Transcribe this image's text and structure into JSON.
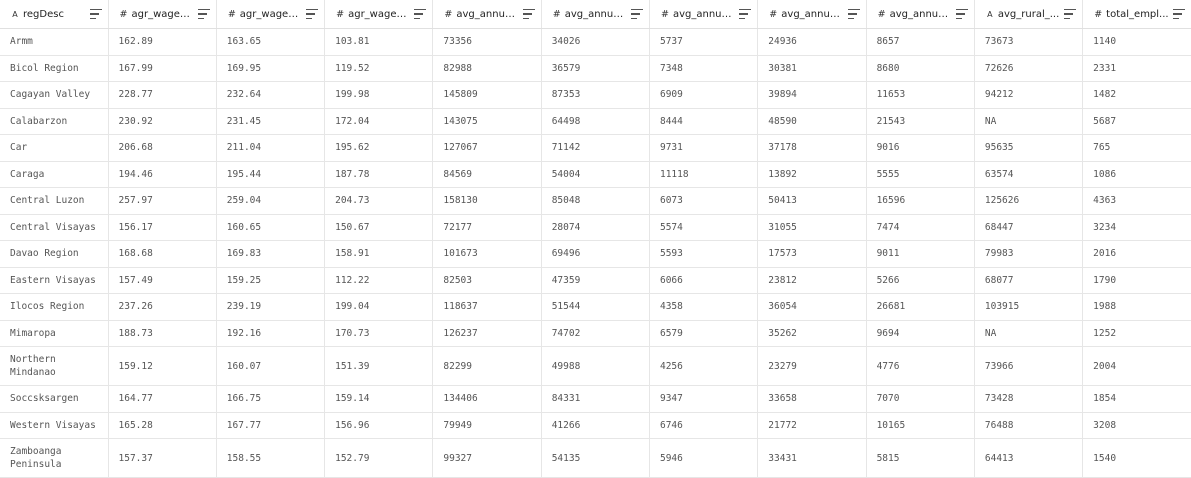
{
  "columns": [
    {
      "type_icon": "text-type-icon",
      "glyph": "A",
      "label": "regDesc"
    },
    {
      "type_icon": "number-type-icon",
      "glyph": "#",
      "label": "agr_wage_..."
    },
    {
      "type_icon": "number-type-icon",
      "glyph": "#",
      "label": "agr_wage_..."
    },
    {
      "type_icon": "number-type-icon",
      "glyph": "#",
      "label": "agr_wage_..."
    },
    {
      "type_icon": "number-type-icon",
      "glyph": "#",
      "label": "avg_annua..."
    },
    {
      "type_icon": "number-type-icon",
      "glyph": "#",
      "label": "avg_annua..."
    },
    {
      "type_icon": "number-type-icon",
      "glyph": "#",
      "label": "avg_annua..."
    },
    {
      "type_icon": "number-type-icon",
      "glyph": "#",
      "label": "avg_annua..."
    },
    {
      "type_icon": "number-type-icon",
      "glyph": "#",
      "label": "avg_annua..."
    },
    {
      "type_icon": "text-type-icon",
      "glyph": "A",
      "label": "avg_rural_..."
    },
    {
      "type_icon": "number-type-icon",
      "glyph": "#",
      "label": "total_empl..."
    }
  ],
  "rows": [
    [
      "Armm",
      "162.89",
      "163.65",
      "103.81",
      "73356",
      "34026",
      "5737",
      "24936",
      "8657",
      "73673",
      "1140"
    ],
    [
      "Bicol Region",
      "167.99",
      "169.95",
      "119.52",
      "82988",
      "36579",
      "7348",
      "30381",
      "8680",
      "72626",
      "2331"
    ],
    [
      "Cagayan Valley",
      "228.77",
      "232.64",
      "199.98",
      "145809",
      "87353",
      "6909",
      "39894",
      "11653",
      "94212",
      "1482"
    ],
    [
      "Calabarzon",
      "230.92",
      "231.45",
      "172.04",
      "143075",
      "64498",
      "8444",
      "48590",
      "21543",
      "NA",
      "5687"
    ],
    [
      "Car",
      "206.68",
      "211.04",
      "195.62",
      "127067",
      "71142",
      "9731",
      "37178",
      "9016",
      "95635",
      "765"
    ],
    [
      "Caraga",
      "194.46",
      "195.44",
      "187.78",
      "84569",
      "54004",
      "11118",
      "13892",
      "5555",
      "63574",
      "1086"
    ],
    [
      "Central Luzon",
      "257.97",
      "259.04",
      "204.73",
      "158130",
      "85048",
      "6073",
      "50413",
      "16596",
      "125626",
      "4363"
    ],
    [
      "Central Visayas",
      "156.17",
      "160.65",
      "150.67",
      "72177",
      "28074",
      "5574",
      "31055",
      "7474",
      "68447",
      "3234"
    ],
    [
      "Davao Region",
      "168.68",
      "169.83",
      "158.91",
      "101673",
      "69496",
      "5593",
      "17573",
      "9011",
      "79983",
      "2016"
    ],
    [
      "Eastern Visayas",
      "157.49",
      "159.25",
      "112.22",
      "82503",
      "47359",
      "6066",
      "23812",
      "5266",
      "68077",
      "1790"
    ],
    [
      "Ilocos Region",
      "237.26",
      "239.19",
      "199.04",
      "118637",
      "51544",
      "4358",
      "36054",
      "26681",
      "103915",
      "1988"
    ],
    [
      "Mimaropa",
      "188.73",
      "192.16",
      "170.73",
      "126237",
      "74702",
      "6579",
      "35262",
      "9694",
      "NA",
      "1252"
    ],
    [
      "Northern Mindanao",
      "159.12",
      "160.07",
      "151.39",
      "82299",
      "49988",
      "4256",
      "23279",
      "4776",
      "73966",
      "2004"
    ],
    [
      "Soccsksargen",
      "164.77",
      "166.75",
      "159.14",
      "134406",
      "84331",
      "9347",
      "33658",
      "7070",
      "73428",
      "1854"
    ],
    [
      "Western Visayas",
      "165.28",
      "167.77",
      "156.96",
      "79949",
      "41266",
      "6746",
      "21772",
      "10165",
      "76488",
      "3208"
    ],
    [
      "Zamboanga Peninsula",
      "157.37",
      "158.55",
      "152.79",
      "99327",
      "54135",
      "5946",
      "33431",
      "5815",
      "64413",
      "1540"
    ]
  ]
}
